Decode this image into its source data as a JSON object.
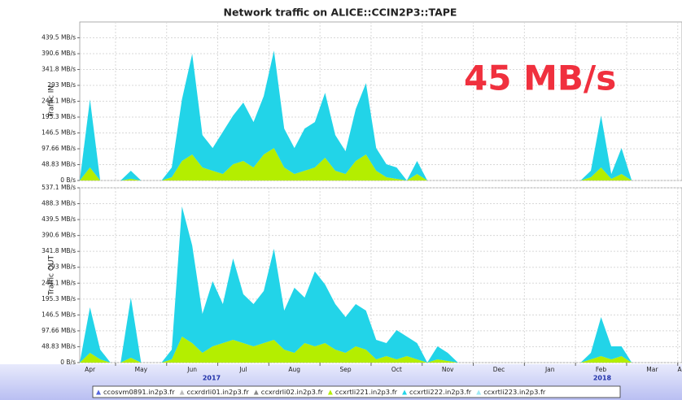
{
  "chart_data": {
    "type": "area",
    "title": "Network traffic on ALICE::CCIN2P3::TAPE",
    "annotation": "45 MB/s",
    "categories": [
      null,
      "Apr",
      null,
      null,
      null,
      null,
      "May",
      null,
      null,
      null,
      null,
      "Jun",
      null,
      null,
      null,
      null,
      "Jul",
      null,
      null,
      null,
      null,
      "Aug",
      null,
      null,
      null,
      null,
      "Sep",
      null,
      null,
      null,
      null,
      "Oct",
      null,
      null,
      null,
      null,
      "Nov",
      null,
      null,
      null,
      null,
      "Dec",
      null,
      null,
      null,
      null,
      "Jan",
      null,
      null,
      null,
      null,
      "Feb",
      null,
      null,
      null,
      null,
      "Mar",
      null,
      null,
      "Apr"
    ],
    "year_labels": [
      "2017",
      "2018"
    ],
    "legend": [
      {
        "name": "ccosvm0891.in2p3.fr",
        "color": "#5566dd"
      },
      {
        "name": "ccxrdrli01.in2p3.fr",
        "color": "#bbbbbb"
      },
      {
        "name": "ccxrdrli02.in2p3.fr",
        "color": "#888888"
      },
      {
        "name": "ccxrtli221.in2p3.fr",
        "color": "#b4ee00"
      },
      {
        "name": "ccxrtli222.in2p3.fr",
        "color": "#22d4e8"
      },
      {
        "name": "ccxrtli223.in2p3.fr",
        "color": "#9eeaf4"
      }
    ],
    "panels": [
      {
        "ylabel": "Traffic IN",
        "ylim": [
          0,
          488.3
        ],
        "yticks": [
          {
            "value": 0,
            "label": "0 B/s"
          },
          {
            "value": 48.83,
            "label": "48.83 MB/s"
          },
          {
            "value": 97.66,
            "label": "97.66 MB/s"
          },
          {
            "value": 146.5,
            "label": "146.5 MB/s"
          },
          {
            "value": 195.3,
            "label": "195.3 MB/s"
          },
          {
            "value": 244.1,
            "label": "244.1 MB/s"
          },
          {
            "value": 293,
            "label": "293 MB/s"
          },
          {
            "value": 341.8,
            "label": "341.8 MB/s"
          },
          {
            "value": 390.6,
            "label": "390.6 MB/s"
          },
          {
            "value": 439.5,
            "label": "439.5 MB/s"
          }
        ],
        "series": [
          {
            "name": "ccxrtli221.in2p3.fr",
            "color": "#b4ee00",
            "values": [
              0,
              40,
              0,
              0,
              0,
              5,
              0,
              0,
              0,
              10,
              60,
              80,
              40,
              30,
              20,
              50,
              60,
              40,
              80,
              100,
              40,
              20,
              30,
              40,
              70,
              30,
              20,
              60,
              80,
              30,
              10,
              5,
              0,
              20,
              0,
              0,
              0,
              0,
              0,
              0,
              0,
              0,
              0,
              0,
              0,
              0,
              0,
              0,
              0,
              0,
              10,
              40,
              5,
              20,
              0,
              0,
              0,
              0,
              0,
              0
            ]
          },
          {
            "name": "ccxrtli222.in2p3.fr",
            "color": "#22d4e8",
            "values": [
              0,
              210,
              0,
              0,
              0,
              25,
              0,
              0,
              0,
              30,
              190,
              310,
              100,
              70,
              130,
              150,
              180,
              140,
              180,
              300,
              120,
              80,
              130,
              140,
              200,
              110,
              70,
              160,
              220,
              70,
              40,
              35,
              0,
              40,
              0,
              0,
              0,
              0,
              0,
              0,
              0,
              0,
              0,
              0,
              0,
              0,
              0,
              0,
              0,
              0,
              20,
              160,
              15,
              80,
              0,
              0,
              0,
              0,
              0,
              0
            ]
          }
        ]
      },
      {
        "ylabel": "Traffic OUT",
        "ylim": [
          0,
          537.1
        ],
        "yticks": [
          {
            "value": 0,
            "label": "0 B/s"
          },
          {
            "value": 48.83,
            "label": "48.83 MB/s"
          },
          {
            "value": 97.66,
            "label": "97.66 MB/s"
          },
          {
            "value": 146.5,
            "label": "146.5 MB/s"
          },
          {
            "value": 195.3,
            "label": "195.3 MB/s"
          },
          {
            "value": 244.1,
            "label": "244.1 MB/s"
          },
          {
            "value": 293,
            "label": "293 MB/s"
          },
          {
            "value": 341.8,
            "label": "341.8 MB/s"
          },
          {
            "value": 390.6,
            "label": "390.6 MB/s"
          },
          {
            "value": 439.5,
            "label": "439.5 MB/s"
          },
          {
            "value": 488.3,
            "label": "488.3 MB/s"
          },
          {
            "value": 537.1,
            "label": "537.1 MB/s"
          }
        ],
        "series": [
          {
            "name": "ccxrtli221.in2p3.fr",
            "color": "#b4ee00",
            "values": [
              0,
              30,
              10,
              0,
              0,
              15,
              0,
              0,
              0,
              10,
              80,
              60,
              30,
              50,
              60,
              70,
              60,
              50,
              60,
              70,
              40,
              30,
              60,
              50,
              60,
              40,
              30,
              50,
              40,
              10,
              20,
              10,
              20,
              10,
              0,
              10,
              5,
              0,
              0,
              0,
              0,
              0,
              0,
              0,
              0,
              0,
              0,
              0,
              0,
              0,
              10,
              20,
              10,
              20,
              0,
              0,
              0,
              0,
              0,
              0
            ]
          },
          {
            "name": "ccxrtli222.in2p3.fr",
            "color": "#22d4e8",
            "values": [
              0,
              140,
              30,
              0,
              0,
              185,
              0,
              0,
              0,
              30,
              400,
              300,
              120,
              200,
              120,
              250,
              150,
              130,
              160,
              280,
              120,
              200,
              140,
              230,
              180,
              140,
              110,
              130,
              120,
              60,
              40,
              90,
              60,
              50,
              0,
              40,
              25,
              0,
              0,
              0,
              0,
              0,
              0,
              0,
              0,
              0,
              0,
              0,
              0,
              0,
              20,
              120,
              40,
              30,
              0,
              0,
              0,
              0,
              0,
              0
            ]
          }
        ]
      }
    ]
  }
}
